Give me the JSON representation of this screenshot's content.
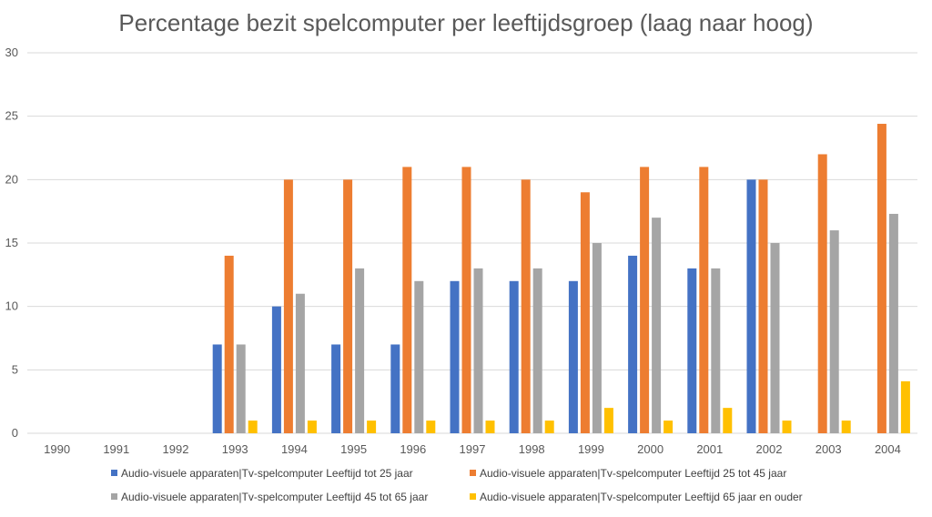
{
  "chart_data": {
    "type": "bar",
    "title": "Percentage bezit spelcomputer per leeftijdsgroep (laag naar hoog)",
    "xlabel": "",
    "ylabel": "",
    "ylim": [
      0,
      30
    ],
    "yticks": [
      0,
      5,
      10,
      15,
      20,
      25,
      30
    ],
    "grid": true,
    "legend_position": "bottom",
    "categories": [
      "1990",
      "1991",
      "1992",
      "1993",
      "1994",
      "1995",
      "1996",
      "1997",
      "1998",
      "1999",
      "2000",
      "2001",
      "2002",
      "2003",
      "2004"
    ],
    "series": [
      {
        "name": "Audio-visuele apparaten|Tv-spelcomputer Leeftijd tot 25 jaar",
        "color": "#4472c4",
        "values": [
          null,
          null,
          null,
          7,
          10,
          7,
          7,
          12,
          12,
          12,
          14,
          13,
          20,
          null,
          null
        ]
      },
      {
        "name": "Audio-visuele apparaten|Tv-spelcomputer Leeftijd 25 tot 45 jaar",
        "color": "#ed7d31",
        "values": [
          null,
          null,
          null,
          14,
          20,
          20,
          21,
          21,
          20,
          19,
          21,
          21,
          20,
          22,
          24.4
        ]
      },
      {
        "name": "Audio-visuele apparaten|Tv-spelcomputer Leeftijd 45 tot 65 jaar",
        "color": "#a5a5a5",
        "values": [
          null,
          null,
          null,
          7,
          11,
          13,
          12,
          13,
          13,
          15,
          17,
          13,
          15,
          16,
          17.3
        ]
      },
      {
        "name": "Audio-visuele apparaten|Tv-spelcomputer Leeftijd 65 jaar en ouder",
        "color": "#ffc000",
        "values": [
          null,
          null,
          null,
          1,
          1,
          1,
          1,
          1,
          1,
          2,
          1,
          2,
          1,
          1,
          4.1
        ]
      }
    ]
  }
}
